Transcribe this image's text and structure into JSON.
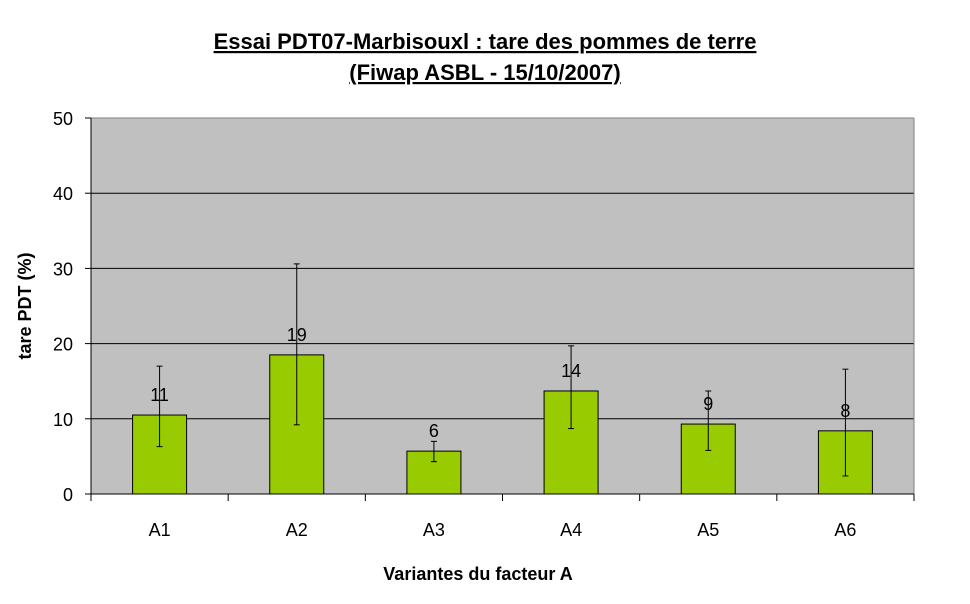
{
  "chart_data": {
    "type": "bar",
    "title_line1": "Essai PDT07-Marbisouxl : tare des pommes de terre",
    "title_line2": "(Fiwap ASBL - 15/10/2007)",
    "xlabel": "Variantes du facteur A",
    "ylabel": "tare PDT (%)",
    "ylim": [
      0,
      50
    ],
    "yticks": [
      0,
      10,
      20,
      30,
      40,
      50
    ],
    "grid": true,
    "categories": [
      "A1",
      "A2",
      "A3",
      "A4",
      "A5",
      "A6"
    ],
    "values": [
      10.5,
      18.5,
      5.7,
      13.7,
      9.3,
      8.4
    ],
    "data_labels": [
      "11",
      "19",
      "6",
      "14",
      "9",
      "8"
    ],
    "error_low": [
      6.3,
      9.2,
      4.3,
      8.7,
      5.8,
      2.4
    ],
    "error_high": [
      17.0,
      30.6,
      7.0,
      19.7,
      13.7,
      16.6
    ],
    "colors": {
      "bar": "#99CC00",
      "plot_bg": "#C0C0C0",
      "gridline": "#000000"
    }
  }
}
